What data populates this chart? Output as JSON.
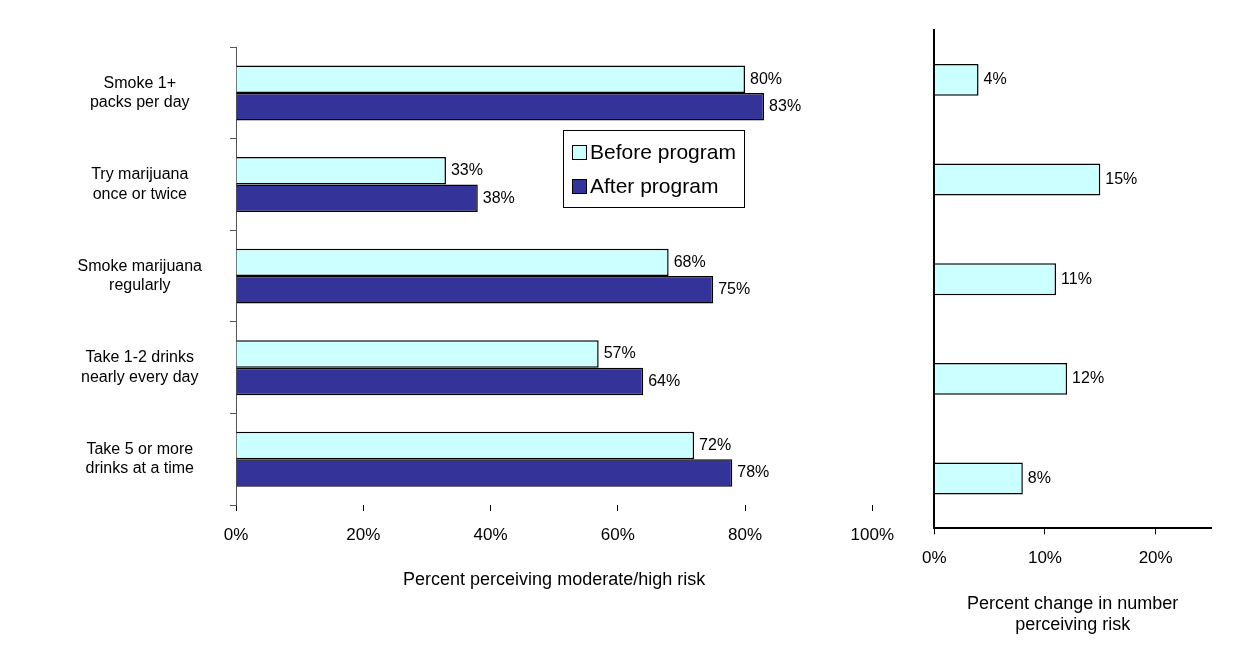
{
  "chart_data": [
    {
      "type": "bar",
      "orientation": "horizontal",
      "categories": [
        "Smoke 1+ packs per day",
        "Try marijuana once or twice",
        "Smoke marijuana regularly",
        "Take 1-2 drinks nearly every day",
        "Take 5 or more drinks at a time"
      ],
      "series": [
        {
          "name": "Before program",
          "color": "#ccffff",
          "values": [
            80,
            33,
            68,
            57,
            72
          ],
          "value_labels": [
            "80%",
            "33%",
            "68%",
            "57%",
            "72%"
          ]
        },
        {
          "name": "After program",
          "color": "#333399",
          "values": [
            83,
            38,
            75,
            64,
            78
          ],
          "value_labels": [
            "83%",
            "38%",
            "75%",
            "64%",
            "78%"
          ]
        }
      ],
      "xlim": [
        0,
        100
      ],
      "xticks": [
        {
          "value": 0,
          "label": "0%"
        },
        {
          "value": 20,
          "label": "20%"
        },
        {
          "value": 40,
          "label": "40%"
        },
        {
          "value": 60,
          "label": "60%"
        },
        {
          "value": 80,
          "label": "80%"
        },
        {
          "value": 100,
          "label": "100%"
        }
      ],
      "xlabel": "Percent perceiving moderate/high risk",
      "grid": false,
      "legend": "top right"
    },
    {
      "type": "bar",
      "orientation": "horizontal",
      "categories": [
        null,
        null,
        null,
        null,
        null
      ],
      "series": [
        {
          "color": "#ccffff",
          "values": [
            4,
            15,
            11,
            12,
            8
          ],
          "value_labels": [
            "4%",
            "15%",
            "11%",
            "12%",
            "8%"
          ]
        }
      ],
      "xlim": [
        0,
        25
      ],
      "xticks": [
        {
          "value": 0,
          "label": "0%"
        },
        {
          "value": 10,
          "label": "10%"
        },
        {
          "value": 20,
          "label": "20%"
        }
      ],
      "xlabel": "Percent change in number perceiving risk",
      "grid": false,
      "tick_labels": "x"
    }
  ]
}
